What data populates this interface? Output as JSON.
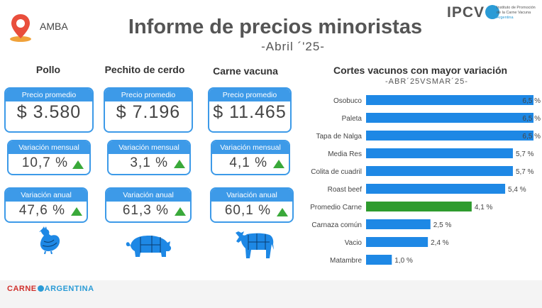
{
  "header": {
    "region": "AMBA",
    "title": "Informe de precios minoristas",
    "subtitle": "-Abril ´'25-",
    "logo_word": "IPCV",
    "logo_sub_1": "Instituto de Promoción",
    "logo_sub_2": "de la Carne Vacuna",
    "logo_sub_3": "Argentina"
  },
  "products": [
    {
      "name": "Pollo",
      "price_label": "Precio promedio",
      "price": "$ 3.580",
      "monthly_label": "Variación mensual",
      "monthly": "10,7 %",
      "annual_label": "Variación anual",
      "annual": "47,6 %",
      "icon": "chicken-icon"
    },
    {
      "name": "Pechito de cerdo",
      "price_label": "Precio promedio",
      "price": "$ 7.196",
      "monthly_label": "Variación mensual",
      "monthly": "3,1 %",
      "annual_label": "Variación anual",
      "annual": "61,3 %",
      "icon": "pig-icon"
    },
    {
      "name": "Carne vacuna",
      "price_label": "Precio promedio",
      "price": "$ 11.465",
      "monthly_label": "Variación mensual",
      "monthly": "4,1 %",
      "annual_label": "Variación anual",
      "annual": "60,1 %",
      "icon": "cow-icon"
    }
  ],
  "chart_data": {
    "type": "bar",
    "orientation": "horizontal",
    "title": "Cortes vacunos con mayor variación",
    "subtitle": "-ABR´25VSMAR´25-",
    "categories": [
      "Osobuco",
      "Paleta",
      "Tapa de Nalga",
      "Media Res",
      "Colita de cuadril",
      "Roast beef",
      "Promedio Carne",
      "Carnaza común",
      "Vacio",
      "Matambre"
    ],
    "values": [
      6.5,
      6.5,
      6.5,
      5.7,
      5.7,
      5.4,
      4.1,
      2.5,
      2.4,
      1.0
    ],
    "labels": [
      "6,5 %",
      "6,5 %",
      "6,5 %",
      "5,7 %",
      "5,7 %",
      "5,4 %",
      "4,1 %",
      "2,5 %",
      "2,4 %",
      "1,0 %"
    ],
    "colors": [
      "#1e88e5",
      "#1e88e5",
      "#1e88e5",
      "#1e88e5",
      "#1e88e5",
      "#1e88e5",
      "#2e9b2e",
      "#1e88e5",
      "#1e88e5",
      "#1e88e5"
    ],
    "xlim": [
      0,
      6.5
    ],
    "grid": false
  },
  "footer": {
    "brand_left": "CARNE",
    "brand_right": "ARGENTINA"
  },
  "colors": {
    "accent_blue": "#3d9ae8",
    "bar_blue": "#1e88e5",
    "bar_green": "#2e9b2e",
    "up_green": "#3aa93a"
  }
}
